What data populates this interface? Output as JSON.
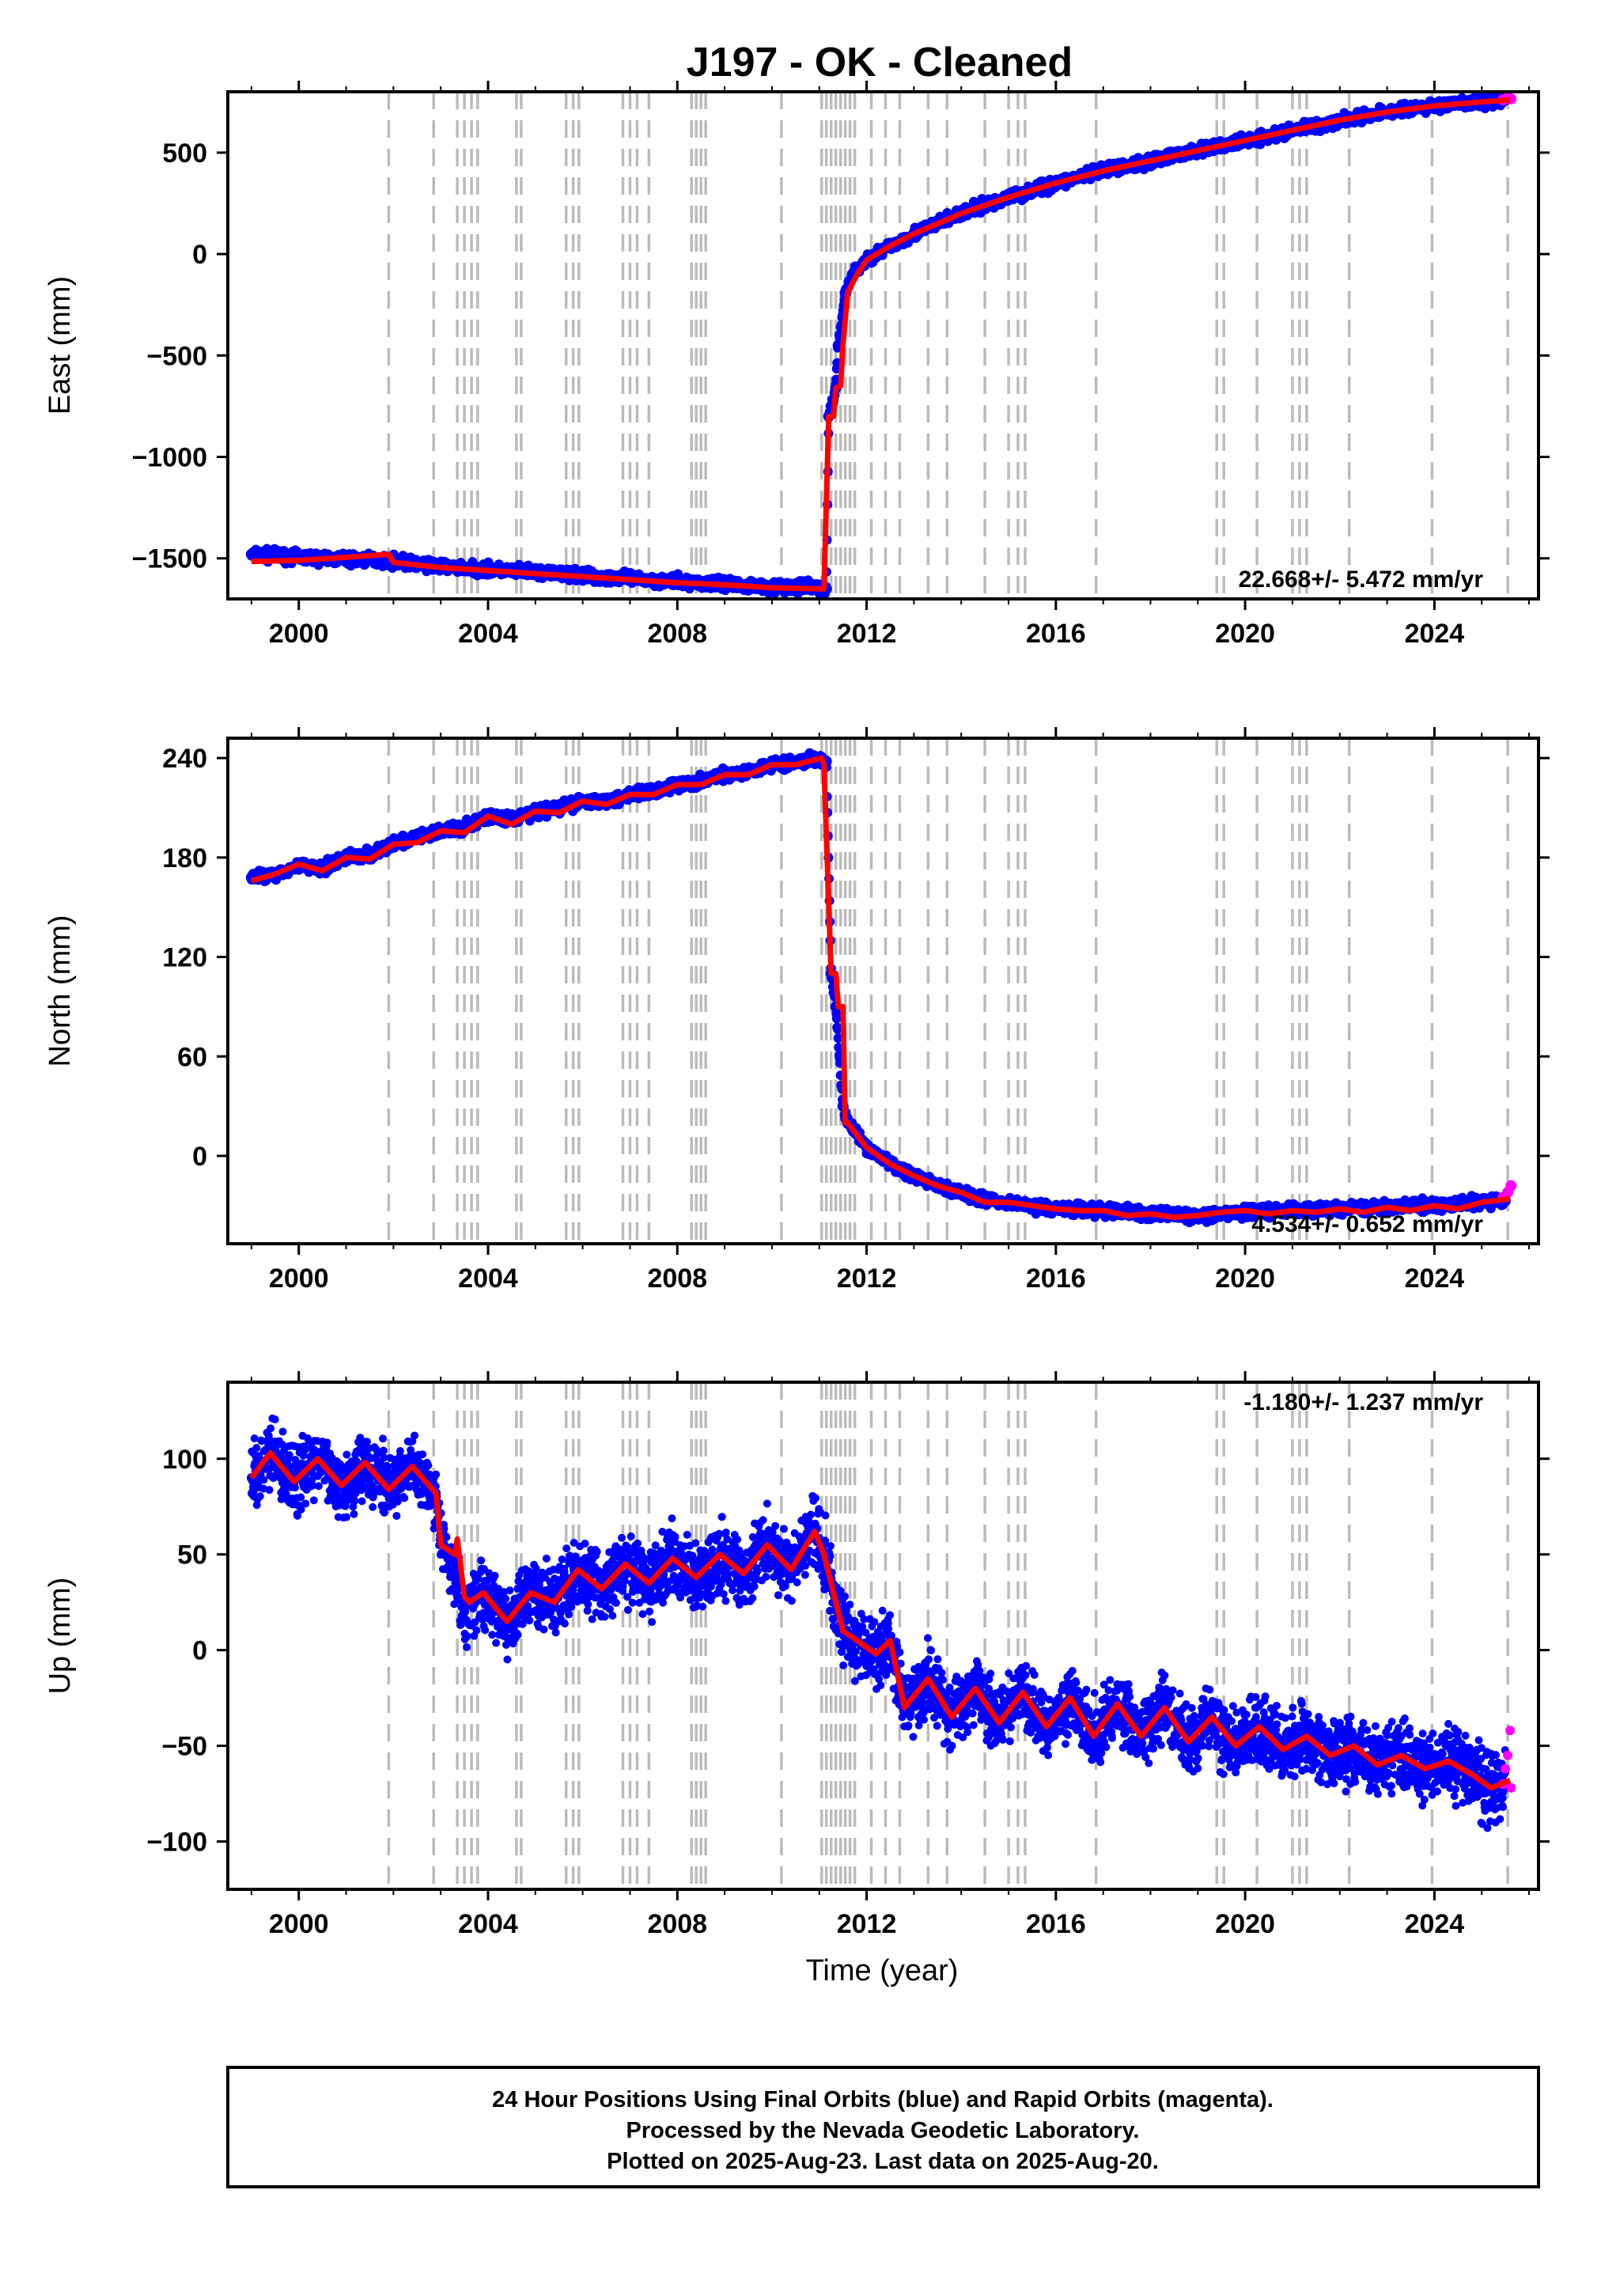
{
  "title": "J197  - OK - Cleaned",
  "x_axis_label": "Time (year)",
  "colors": {
    "final": "#0000ff",
    "rapid": "#ff00ff",
    "model": "#ff0000",
    "event": "#bbbbbb"
  },
  "footer": {
    "line1": "24 Hour Positions Using Final Orbits (blue) and Rapid Orbits (magenta).",
    "line2": "Processed by the Nevada Geodetic Laboratory.",
    "line3": "Plotted on 2025-Aug-23. Last data on 2025-Aug-20."
  },
  "chart_data": [
    {
      "type": "scatter",
      "ylabel": "East (mm)",
      "rate": "22.668+/- 5.472 mm/yr",
      "xlim": [
        1998.5,
        2026.2
      ],
      "ylim": [
        -1700,
        800
      ],
      "xticks": [
        2000,
        2004,
        2008,
        2012,
        2016,
        2020,
        2024
      ],
      "yticks": [
        -1500,
        -1000,
        -500,
        0,
        500
      ],
      "events": [
        2001.9,
        2002.85,
        2003.35,
        2003.5,
        2003.65,
        2003.78,
        2004.6,
        2004.7,
        2005.65,
        2005.8,
        2005.92,
        2006.85,
        2007.0,
        2007.15,
        2007.4,
        2008.3,
        2008.4,
        2008.5,
        2008.6,
        2010.2,
        2011.05,
        2011.15,
        2011.25,
        2011.35,
        2011.45,
        2011.55,
        2011.65,
        2011.75,
        2012.1,
        2012.4,
        2012.7,
        2013.3,
        2013.7,
        2014.5,
        2015.0,
        2015.2,
        2015.35,
        2016.85,
        2019.4,
        2019.55,
        2020.25,
        2021.0,
        2021.15,
        2021.3,
        2022.2,
        2023.95,
        2025.55
      ],
      "series": [
        {
          "name": "Final",
          "x": [
            1999.0,
            2000.0,
            2001.0,
            2001.9,
            2003.0,
            2004.0,
            2005.0,
            2006.0,
            2007.0,
            2008.0,
            2009.0,
            2010.0,
            2011.0,
            2011.15,
            2011.2,
            2011.35,
            2011.4,
            2011.55,
            2011.7,
            2012.0,
            2012.5,
            2013.0,
            2013.5,
            2014.0,
            2015.0,
            2016.0,
            2017.0,
            2018.0,
            2019.0,
            2020.0,
            2021.0,
            2022.0,
            2023.0,
            2024.0,
            2025.0,
            2025.5
          ],
          "y": [
            -1480,
            -1495,
            -1505,
            -1510,
            -1540,
            -1555,
            -1570,
            -1585,
            -1600,
            -1615,
            -1625,
            -1640,
            -1645,
            -1650,
            -800,
            -660,
            -450,
            -190,
            -100,
            -30,
            40,
            100,
            150,
            200,
            280,
            350,
            410,
            460,
            510,
            560,
            610,
            660,
            700,
            730,
            750,
            760
          ]
        },
        {
          "name": "Rapid",
          "x": [
            2025.45,
            2025.55,
            2025.62
          ],
          "y": [
            760,
            770,
            765
          ]
        },
        {
          "name": "Model",
          "x": [
            1999.0,
            2000.0,
            2001.0,
            2001.9,
            2002.0,
            2003.0,
            2004.0,
            2005.0,
            2006.0,
            2007.0,
            2008.0,
            2009.0,
            2010.0,
            2011.1,
            2011.2,
            2011.3,
            2011.35,
            2011.45,
            2011.5,
            2011.6,
            2011.8,
            2012.0,
            2012.5,
            2013.0,
            2013.5,
            2014.0,
            2015.0,
            2016.0,
            2017.0,
            2018.0,
            2019.0,
            2020.0,
            2021.0,
            2022.0,
            2023.0,
            2024.0,
            2025.0,
            2025.6
          ],
          "y": [
            -1515,
            -1510,
            -1495,
            -1480,
            -1520,
            -1545,
            -1560,
            -1575,
            -1590,
            -1605,
            -1620,
            -1630,
            -1645,
            -1650,
            -800,
            -800,
            -660,
            -650,
            -450,
            -190,
            -100,
            -30,
            40,
            100,
            150,
            200,
            280,
            350,
            410,
            460,
            510,
            560,
            610,
            660,
            700,
            730,
            750,
            760
          ]
        }
      ]
    },
    {
      "type": "scatter",
      "ylabel": "North (mm)",
      "rate": "4.534+/- 0.652 mm/yr",
      "xlim": [
        1998.5,
        2026.2
      ],
      "ylim": [
        -53,
        252
      ],
      "xticks": [
        2000,
        2004,
        2008,
        2012,
        2016,
        2020,
        2024
      ],
      "yticks": [
        0,
        60,
        120,
        180,
        240
      ],
      "events": [
        2001.9,
        2002.85,
        2003.35,
        2003.5,
        2003.65,
        2003.78,
        2004.6,
        2004.7,
        2005.65,
        2005.8,
        2005.92,
        2006.85,
        2007.0,
        2007.15,
        2007.4,
        2008.3,
        2008.4,
        2008.5,
        2008.6,
        2010.2,
        2011.05,
        2011.15,
        2011.25,
        2011.35,
        2011.45,
        2011.55,
        2011.65,
        2011.75,
        2012.1,
        2012.4,
        2012.7,
        2013.3,
        2013.7,
        2014.5,
        2015.0,
        2015.2,
        2015.35,
        2016.85,
        2019.4,
        2019.55,
        2020.25,
        2021.0,
        2021.15,
        2021.3,
        2022.2,
        2023.95,
        2025.55
      ],
      "series": [
        {
          "name": "Final",
          "x": [
            1999.0,
            1999.5,
            2000.0,
            2000.5,
            2001.0,
            2001.5,
            2002.0,
            2002.5,
            2003.0,
            2003.5,
            2004.0,
            2004.5,
            2005.0,
            2005.5,
            2006.0,
            2006.5,
            2007.0,
            2007.5,
            2008.0,
            2008.5,
            2009.0,
            2009.5,
            2010.0,
            2010.5,
            2011.0,
            2011.15,
            2011.25,
            2011.35,
            2011.5,
            2011.6,
            2012.0,
            2012.5,
            2013.0,
            2013.5,
            2014.0,
            2014.5,
            2015.0,
            2016.0,
            2017.0,
            2018.0,
            2019.0,
            2020.0,
            2021.0,
            2022.0,
            2023.0,
            2024.0,
            2025.0,
            2025.5
          ],
          "y": [
            168,
            170,
            175,
            174,
            180,
            182,
            188,
            192,
            196,
            198,
            205,
            203,
            208,
            210,
            214,
            214,
            218,
            220,
            224,
            226,
            230,
            232,
            236,
            238,
            240,
            238,
            110,
            90,
            30,
            20,
            5,
            -5,
            -12,
            -18,
            -22,
            -26,
            -28,
            -32,
            -33,
            -35,
            -36,
            -34,
            -33,
            -32,
            -31,
            -30,
            -28,
            -27
          ]
        },
        {
          "name": "Rapid",
          "x": [
            2025.45,
            2025.55,
            2025.62
          ],
          "y": [
            -25,
            -22,
            -18
          ]
        },
        {
          "name": "Model",
          "x": [
            1999.0,
            1999.5,
            2000.0,
            2000.5,
            2001.0,
            2001.5,
            2002.0,
            2002.5,
            2003.0,
            2003.5,
            2004.0,
            2004.5,
            2005.0,
            2005.5,
            2006.0,
            2006.5,
            2007.0,
            2007.5,
            2008.0,
            2008.5,
            2009.0,
            2009.5,
            2010.0,
            2010.5,
            2011.05,
            2011.1,
            2011.25,
            2011.35,
            2011.4,
            2011.5,
            2011.55,
            2011.6,
            2012.0,
            2012.5,
            2013.0,
            2013.5,
            2014.0,
            2014.5,
            2015.0,
            2015.5,
            2016.0,
            2016.5,
            2017.0,
            2017.5,
            2018.0,
            2018.5,
            2019.0,
            2019.5,
            2020.0,
            2020.5,
            2021.0,
            2021.5,
            2022.0,
            2022.5,
            2023.0,
            2023.5,
            2024.0,
            2024.5,
            2025.0,
            2025.6
          ],
          "y": [
            166,
            170,
            176,
            172,
            180,
            179,
            188,
            189,
            196,
            195,
            205,
            200,
            208,
            207,
            214,
            212,
            218,
            218,
            224,
            224,
            230,
            230,
            236,
            236,
            240,
            236,
            110,
            110,
            90,
            90,
            20,
            20,
            5,
            -5,
            -12,
            -18,
            -22,
            -28,
            -28,
            -30,
            -32,
            -33,
            -33,
            -36,
            -35,
            -37,
            -36,
            -34,
            -33,
            -35,
            -33,
            -34,
            -32,
            -34,
            -31,
            -33,
            -30,
            -32,
            -28,
            -26
          ]
        }
      ]
    },
    {
      "type": "scatter",
      "ylabel": "Up (mm)",
      "rate": "-1.180+/- 1.237 mm/yr",
      "xlim": [
        1998.5,
        2026.2
      ],
      "ylim": [
        -125,
        140
      ],
      "xticks": [
        2000,
        2004,
        2008,
        2012,
        2016,
        2020,
        2024
      ],
      "yticks": [
        -100,
        -50,
        0,
        50,
        100
      ],
      "events": [
        2001.9,
        2002.85,
        2003.35,
        2003.5,
        2003.65,
        2003.78,
        2004.6,
        2004.7,
        2005.65,
        2005.8,
        2005.92,
        2006.85,
        2007.0,
        2007.15,
        2007.4,
        2008.3,
        2008.4,
        2008.5,
        2008.6,
        2010.2,
        2011.05,
        2011.15,
        2011.25,
        2011.35,
        2011.45,
        2011.55,
        2011.65,
        2011.75,
        2012.1,
        2012.4,
        2012.7,
        2013.3,
        2013.7,
        2014.5,
        2015.0,
        2015.2,
        2015.35,
        2016.85,
        2019.4,
        2019.55,
        2020.25,
        2021.0,
        2021.15,
        2021.3,
        2022.2,
        2023.95,
        2025.55
      ],
      "series": [
        {
          "name": "Final",
          "x": [
            1999.0,
            1999.4,
            1999.9,
            2000.4,
            2000.9,
            2001.4,
            2001.9,
            2002.4,
            2002.9,
            2003.0,
            2003.3,
            2003.5,
            2003.9,
            2004.4,
            2004.9,
            2005.4,
            2005.9,
            2006.4,
            2006.9,
            2007.4,
            2007.9,
            2008.4,
            2008.9,
            2009.4,
            2009.9,
            2010.4,
            2010.9,
            2011.1,
            2011.3,
            2011.5,
            2011.8,
            2012.2,
            2012.5,
            2012.8,
            2013.3,
            2013.8,
            2014.3,
            2014.8,
            2015.3,
            2015.8,
            2016.3,
            2016.8,
            2017.3,
            2017.8,
            2018.3,
            2018.8,
            2019.3,
            2019.8,
            2020.3,
            2020.8,
            2021.3,
            2021.8,
            2022.3,
            2022.8,
            2023.3,
            2023.8,
            2024.3,
            2024.8,
            2025.2,
            2025.5
          ],
          "y": [
            90,
            103,
            88,
            100,
            86,
            98,
            84,
            96,
            82,
            60,
            40,
            20,
            30,
            15,
            30,
            25,
            42,
            32,
            45,
            35,
            48,
            38,
            50,
            40,
            55,
            42,
            62,
            50,
            30,
            10,
            5,
            -2,
            5,
            -30,
            -15,
            -35,
            -20,
            -38,
            -22,
            -40,
            -25,
            -45,
            -28,
            -45,
            -30,
            -48,
            -35,
            -50,
            -40,
            -52,
            -45,
            -55,
            -50,
            -60,
            -55,
            -62,
            -58,
            -65,
            -72,
            -70
          ]
        },
        {
          "name": "Rapid",
          "x": [
            2025.45,
            2025.5,
            2025.55,
            2025.6,
            2025.62
          ],
          "y": [
            -70,
            -62,
            -55,
            -42,
            -72
          ]
        },
        {
          "name": "Model",
          "x": [
            1999.0,
            1999.4,
            1999.9,
            2000.4,
            2000.9,
            2001.4,
            2001.9,
            2002.4,
            2002.9,
            2003.0,
            2003.3,
            2003.35,
            2003.5,
            2003.6,
            2003.9,
            2004.4,
            2004.9,
            2005.4,
            2005.9,
            2006.4,
            2006.9,
            2007.4,
            2007.9,
            2008.4,
            2008.9,
            2009.4,
            2009.9,
            2010.4,
            2010.9,
            2011.1,
            2011.3,
            2011.5,
            2011.8,
            2012.2,
            2012.5,
            2012.8,
            2013.3,
            2013.8,
            2014.3,
            2014.8,
            2015.3,
            2015.8,
            2016.3,
            2016.8,
            2017.3,
            2017.8,
            2018.3,
            2018.8,
            2019.3,
            2019.8,
            2020.3,
            2020.8,
            2021.3,
            2021.8,
            2022.3,
            2022.8,
            2023.3,
            2023.8,
            2024.3,
            2024.8,
            2025.2,
            2025.6
          ],
          "y": [
            90,
            103,
            88,
            100,
            86,
            98,
            84,
            96,
            82,
            55,
            50,
            58,
            28,
            25,
            30,
            15,
            30,
            25,
            42,
            32,
            45,
            35,
            48,
            38,
            50,
            40,
            55,
            42,
            62,
            50,
            30,
            10,
            5,
            -2,
            5,
            -30,
            -15,
            -35,
            -20,
            -38,
            -22,
            -40,
            -25,
            -45,
            -28,
            -45,
            -30,
            -48,
            -35,
            -50,
            -40,
            -52,
            -45,
            -55,
            -50,
            -60,
            -55,
            -62,
            -58,
            -65,
            -72,
            -68
          ]
        }
      ]
    }
  ]
}
